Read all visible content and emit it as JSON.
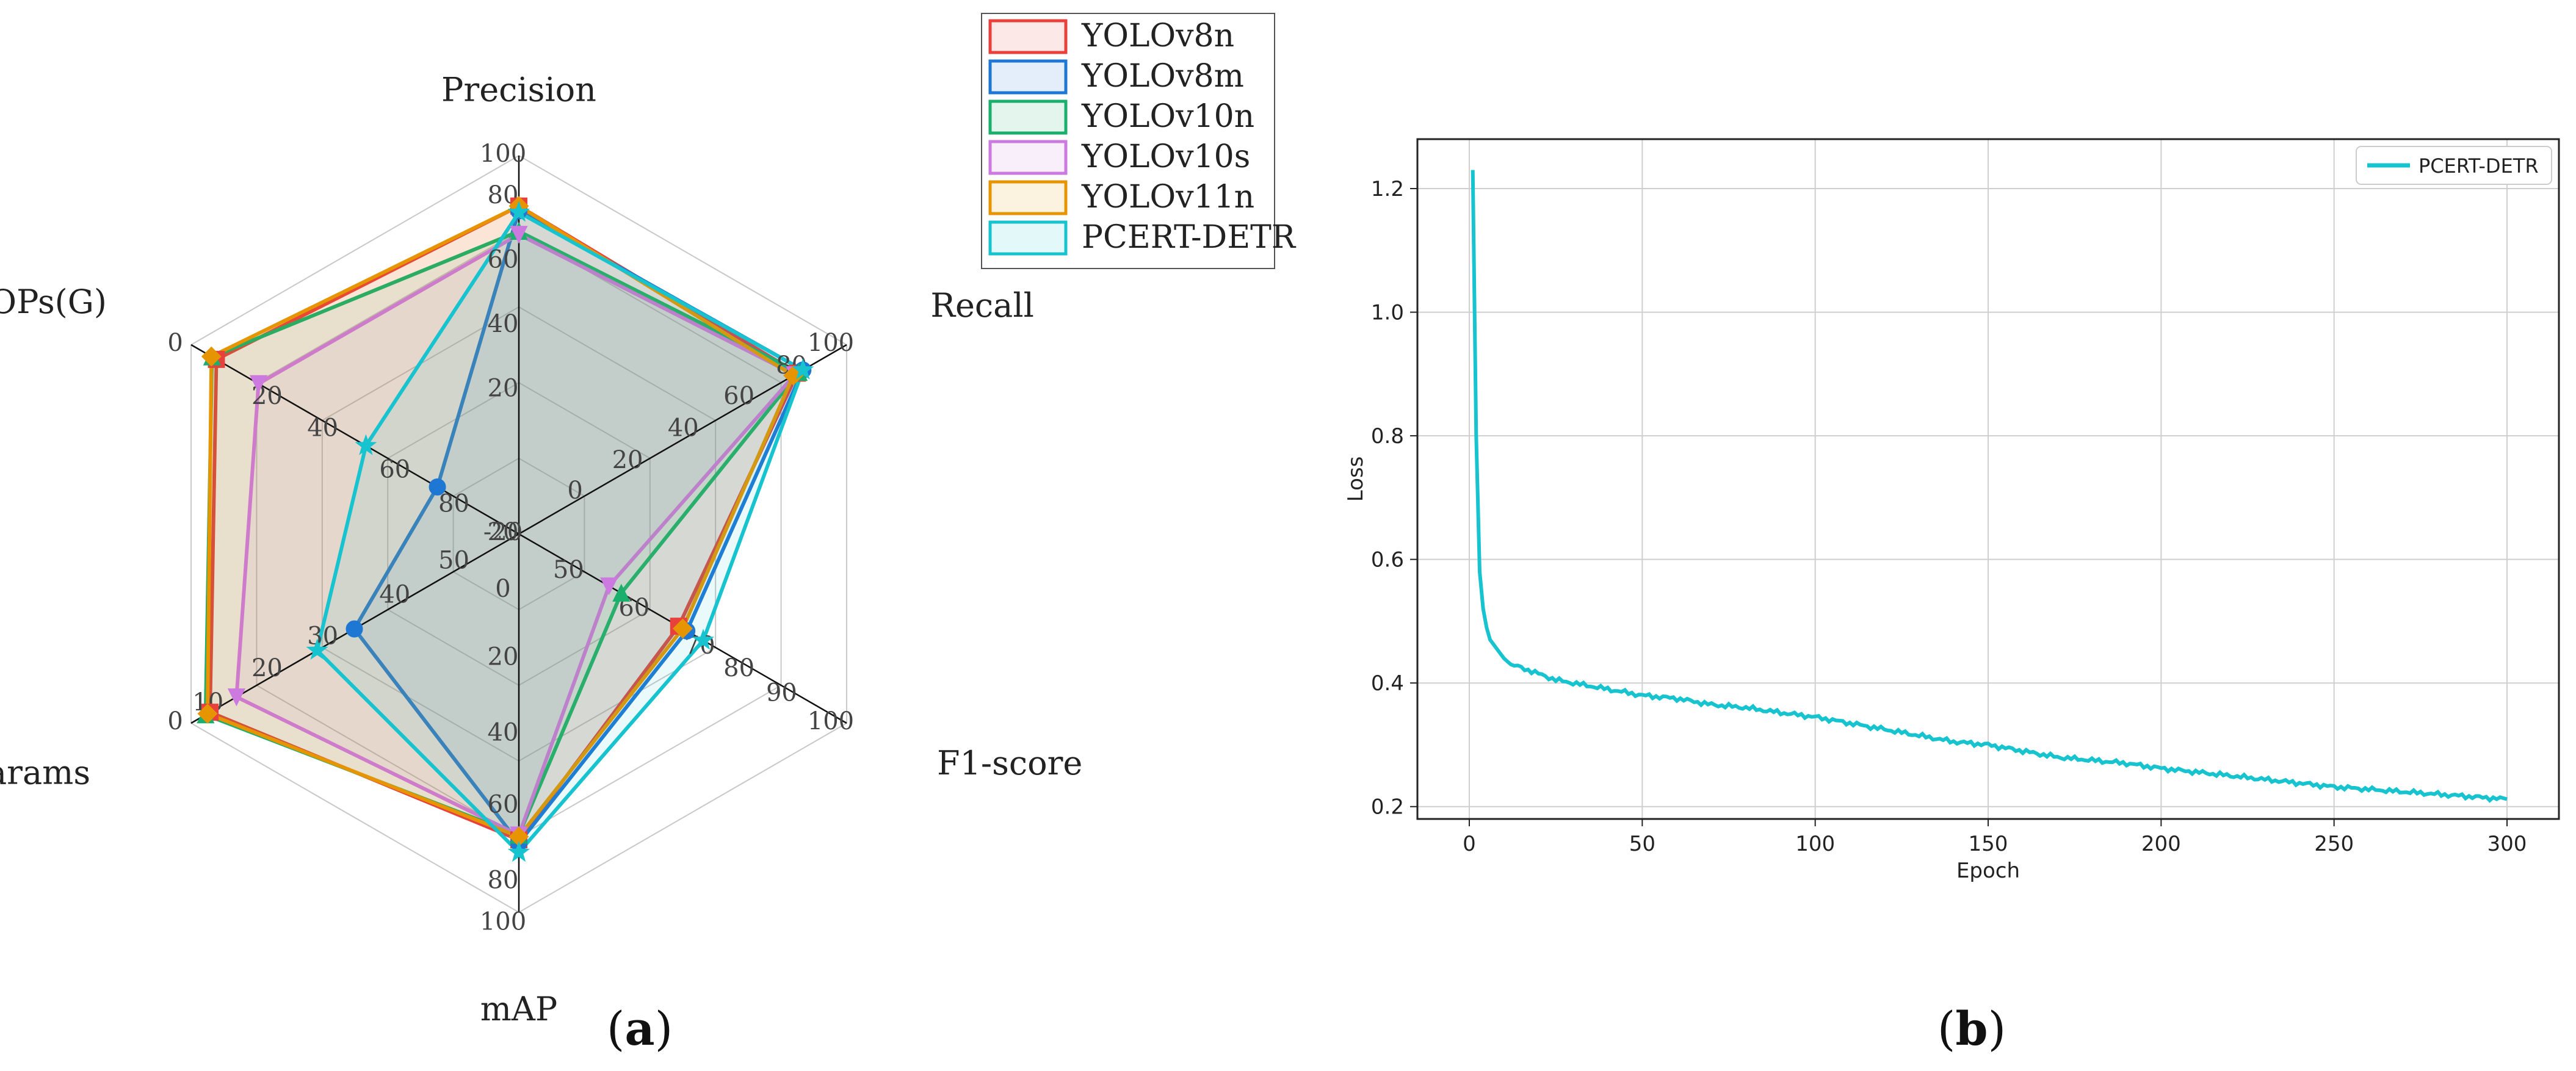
{
  "figure": {
    "panel_a_label": "(a)",
    "panel_b_label": "(b)"
  },
  "chart_data": [
    {
      "type": "radar",
      "axes": [
        {
          "name": "Precision",
          "ticks": [
            "20",
            "40",
            "60",
            "80",
            "100"
          ]
        },
        {
          "name": "Recall",
          "ticks": [
            "-20",
            "0",
            "20",
            "40",
            "60",
            "80",
            "100"
          ]
        },
        {
          "name": "F1-score",
          "ticks": [
            "20",
            "50",
            "60",
            "70",
            "80",
            "90",
            "100"
          ]
        },
        {
          "name": "mAP",
          "ticks": [
            "0",
            "20",
            "40",
            "60",
            "80",
            "100"
          ]
        },
        {
          "name": "Params",
          "ticks": [
            "50",
            "40",
            "30",
            "20",
            "10",
            "0"
          ]
        },
        {
          "name": "FLOPs(G)",
          "ticks": [
            "80",
            "60",
            "40",
            "20",
            "0"
          ]
        }
      ],
      "series": [
        {
          "name": "YOLOv8n",
          "color": "#e8413c",
          "values": [
            84.0,
            82.0,
            79.5,
            77.0,
            3.0,
            8.1
          ]
        },
        {
          "name": "YOLOv8m",
          "color": "#1f77d4",
          "values": [
            82.5,
            84.0,
            80.5,
            78.0,
            25.9,
            78.9
          ]
        },
        {
          "name": "YOLOv10n",
          "color": "#1aaf6c",
          "values": [
            76.0,
            82.5,
            72.5,
            75.5,
            2.3,
            6.7
          ]
        },
        {
          "name": "YOLOv10s",
          "color": "#cc79e0",
          "values": [
            75.0,
            81.0,
            71.0,
            75.5,
            7.2,
            21.6
          ]
        },
        {
          "name": "YOLOv11n",
          "color": "#e69500",
          "values": [
            84.0,
            80.5,
            80.0,
            76.0,
            2.6,
            6.5
          ]
        },
        {
          "name": "PCERT-DETR",
          "color": "#17c3cf",
          "values": [
            82.0,
            84.0,
            82.5,
            81.0,
            20.0,
            56.0
          ]
        }
      ]
    },
    {
      "type": "line",
      "xlabel": "Epoch",
      "ylabel": "Loss",
      "xlim": [
        -15,
        315
      ],
      "ylim": [
        0.18,
        1.28
      ],
      "xticks": [
        "0",
        "50",
        "100",
        "150",
        "200",
        "250",
        "300"
      ],
      "yticks": [
        "0.2",
        "0.4",
        "0.6",
        "0.8",
        "1.0",
        "1.2"
      ],
      "grid": true,
      "legend_position": "upper right",
      "series": [
        {
          "name": "PCERT-DETR",
          "color": "#17c3cf",
          "x": [
            1,
            2,
            3,
            4,
            5,
            6,
            8,
            10,
            12,
            15,
            20,
            25,
            30,
            40,
            50,
            60,
            70,
            80,
            90,
            100,
            110,
            120,
            130,
            140,
            150,
            160,
            170,
            180,
            190,
            200,
            210,
            220,
            230,
            240,
            250,
            260,
            270,
            280,
            290,
            300
          ],
          "y": [
            1.23,
            0.8,
            0.58,
            0.52,
            0.49,
            0.47,
            0.455,
            0.44,
            0.43,
            0.425,
            0.415,
            0.405,
            0.4,
            0.39,
            0.38,
            0.375,
            0.365,
            0.36,
            0.352,
            0.345,
            0.335,
            0.325,
            0.315,
            0.305,
            0.3,
            0.29,
            0.28,
            0.275,
            0.27,
            0.262,
            0.256,
            0.25,
            0.244,
            0.238,
            0.232,
            0.228,
            0.224,
            0.22,
            0.216,
            0.212
          ]
        }
      ]
    }
  ]
}
